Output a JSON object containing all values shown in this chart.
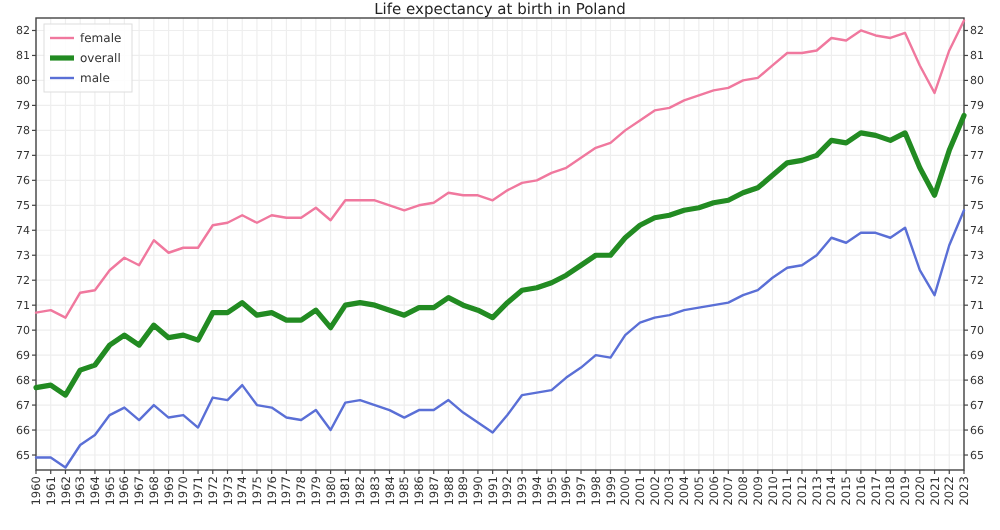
{
  "chart_data": {
    "type": "line",
    "title": "Life expectancy at birth in Poland",
    "x": [
      1960,
      1961,
      1962,
      1963,
      1964,
      1965,
      1966,
      1967,
      1968,
      1969,
      1970,
      1971,
      1972,
      1973,
      1974,
      1975,
      1976,
      1977,
      1978,
      1979,
      1980,
      1981,
      1982,
      1983,
      1984,
      1985,
      1986,
      1987,
      1988,
      1989,
      1990,
      1991,
      1992,
      1993,
      1994,
      1995,
      1996,
      1997,
      1998,
      1999,
      2000,
      2001,
      2002,
      2003,
      2004,
      2005,
      2006,
      2007,
      2008,
      2009,
      2010,
      2011,
      2012,
      2013,
      2014,
      2015,
      2016,
      2017,
      2018,
      2019,
      2020,
      2021,
      2022,
      2023
    ],
    "series": [
      {
        "name": "female",
        "color": "#f0789e",
        "values": [
          70.7,
          70.8,
          70.5,
          71.5,
          71.6,
          72.4,
          72.9,
          72.6,
          73.6,
          73.1,
          73.3,
          73.3,
          74.2,
          74.3,
          74.6,
          74.3,
          74.6,
          74.5,
          74.5,
          74.9,
          74.4,
          75.2,
          75.2,
          75.2,
          75.0,
          74.8,
          75.0,
          75.1,
          75.5,
          75.4,
          75.4,
          75.2,
          75.6,
          75.9,
          76.0,
          76.3,
          76.5,
          76.9,
          77.3,
          77.5,
          78.0,
          78.4,
          78.8,
          78.9,
          79.2,
          79.4,
          79.6,
          79.7,
          80.0,
          80.1,
          80.6,
          81.1,
          81.1,
          81.2,
          81.7,
          81.6,
          82.0,
          81.8,
          81.7,
          81.9,
          80.6,
          79.5,
          81.2,
          82.4
        ]
      },
      {
        "name": "overall",
        "color": "#228b22",
        "values": [
          67.7,
          67.8,
          67.4,
          68.4,
          68.6,
          69.4,
          69.8,
          69.4,
          70.2,
          69.7,
          69.8,
          69.6,
          70.7,
          70.7,
          71.1,
          70.6,
          70.7,
          70.4,
          70.4,
          70.8,
          70.1,
          71.0,
          71.1,
          71.0,
          70.8,
          70.6,
          70.9,
          70.9,
          71.3,
          71.0,
          70.8,
          70.5,
          71.1,
          71.6,
          71.7,
          71.9,
          72.2,
          72.6,
          73.0,
          73.0,
          73.7,
          74.2,
          74.5,
          74.6,
          74.8,
          74.9,
          75.1,
          75.2,
          75.5,
          75.7,
          76.2,
          76.7,
          76.8,
          77.0,
          77.6,
          77.5,
          77.9,
          77.8,
          77.6,
          77.9,
          76.5,
          75.4,
          77.2,
          78.6
        ]
      },
      {
        "name": "male",
        "color": "#5a6fd6",
        "values": [
          64.9,
          64.9,
          64.5,
          65.4,
          65.8,
          66.6,
          66.9,
          66.4,
          67.0,
          66.5,
          66.6,
          66.1,
          67.3,
          67.2,
          67.8,
          67.0,
          66.9,
          66.5,
          66.4,
          66.8,
          66.0,
          67.1,
          67.2,
          67.0,
          66.8,
          66.5,
          66.8,
          66.8,
          67.2,
          66.7,
          66.3,
          65.9,
          66.6,
          67.4,
          67.5,
          67.6,
          68.1,
          68.5,
          69.0,
          68.9,
          69.8,
          70.3,
          70.5,
          70.6,
          70.8,
          70.9,
          71.0,
          71.1,
          71.4,
          71.6,
          72.1,
          72.5,
          72.6,
          73.0,
          73.7,
          73.5,
          73.9,
          73.9,
          73.7,
          74.1,
          72.4,
          71.4,
          73.4,
          74.8
        ]
      }
    ],
    "xlim": [
      1960,
      2023
    ],
    "xticks": [
      1960,
      1961,
      1962,
      1963,
      1964,
      1965,
      1966,
      1967,
      1968,
      1969,
      1970,
      1971,
      1972,
      1973,
      1974,
      1975,
      1976,
      1977,
      1978,
      1979,
      1980,
      1981,
      1982,
      1983,
      1984,
      1985,
      1986,
      1987,
      1988,
      1989,
      1990,
      1991,
      1992,
      1993,
      1994,
      1995,
      1996,
      1997,
      1998,
      1999,
      2000,
      2001,
      2002,
      2003,
      2004,
      2005,
      2006,
      2007,
      2008,
      2009,
      2010,
      2011,
      2012,
      2013,
      2014,
      2015,
      2016,
      2017,
      2018,
      2019,
      2020,
      2021,
      2022,
      2023
    ],
    "ylim": [
      64.4,
      82.5
    ],
    "yticks": [
      65,
      66,
      67,
      68,
      69,
      70,
      71,
      72,
      73,
      74,
      75,
      76,
      77,
      78,
      79,
      80,
      81,
      82
    ],
    "y2lim": [
      64.4,
      82.5
    ],
    "y2ticks": [
      65,
      66,
      67,
      68,
      69,
      70,
      71,
      72,
      73,
      74,
      75,
      76,
      77,
      78,
      79,
      80,
      81,
      82
    ],
    "grid": true,
    "legend": "top left",
    "marker": "none",
    "line_style": "solid"
  }
}
